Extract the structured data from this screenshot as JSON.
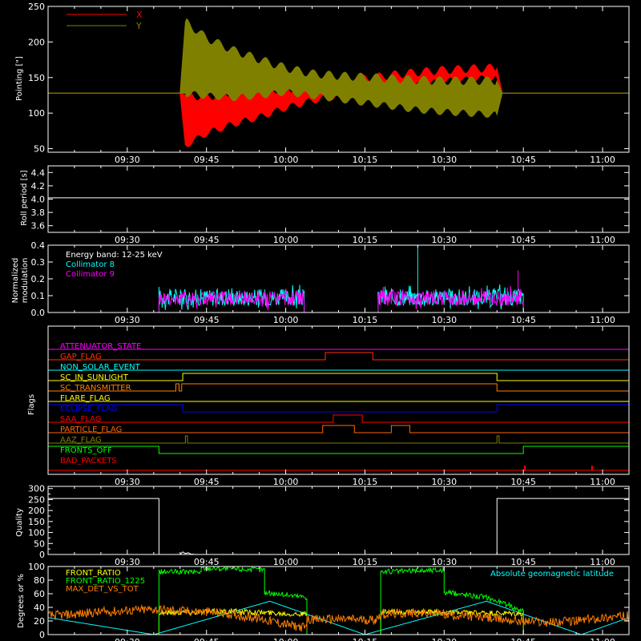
{
  "time_ticks": [
    "09:30",
    "09:45",
    "10:00",
    "10:15",
    "10:30",
    "10:45",
    "11:00"
  ],
  "time_tick_minutes": [
    570,
    585,
    600,
    615,
    630,
    645,
    660
  ],
  "time_range_minutes": [
    555,
    665
  ],
  "chart_data": [
    {
      "type": "area",
      "ylabel": "Pointing [\"]",
      "ylim": [
        45,
        250
      ],
      "yticks": [
        50,
        100,
        150,
        200,
        250
      ],
      "legend": [
        {
          "name": "X",
          "color": "#ff0000"
        },
        {
          "name": "Y",
          "color": "#808000"
        }
      ],
      "series": [
        {
          "name": "X",
          "color": "#ff0000",
          "x": [
            555,
            580,
            581,
            585,
            590,
            595,
            600,
            605,
            610,
            615,
            620,
            625,
            630,
            635,
            640,
            641,
            665
          ],
          "lower": [
            128,
            128,
            55,
            72,
            85,
            95,
            108,
            118,
            125,
            130,
            135,
            140,
            145,
            148,
            150,
            128,
            128
          ],
          "upper": [
            128,
            128,
            125,
            122,
            130,
            133,
            133,
            138,
            143,
            148,
            153,
            157,
            160,
            162,
            163,
            128,
            128
          ]
        },
        {
          "name": "Y",
          "color": "#808000",
          "x": [
            555,
            580,
            581,
            585,
            590,
            595,
            600,
            605,
            610,
            615,
            620,
            625,
            630,
            635,
            640,
            641,
            665
          ],
          "lower": [
            128,
            128,
            128,
            125,
            122,
            125,
            130,
            125,
            120,
            115,
            110,
            105,
            102,
            100,
            98,
            128,
            128
          ],
          "upper": [
            128,
            128,
            228,
            205,
            188,
            175,
            163,
            155,
            152,
            150,
            148,
            146,
            145,
            145,
            145,
            128,
            128
          ]
        }
      ],
      "baseline": {
        "value": 128,
        "color": "#808000"
      }
    },
    {
      "type": "line",
      "ylabel": "Roll period [s]",
      "ylim": [
        3.5,
        4.5
      ],
      "yticks": [
        3.6,
        3.8,
        4.0,
        4.2,
        4.4
      ],
      "series": [
        {
          "name": "",
          "color": "#ffffff",
          "x": [
            555,
            665
          ],
          "y": [
            4.02,
            4.02
          ]
        }
      ]
    },
    {
      "type": "line",
      "ylabel": "Normalized modulation",
      "ylim": [
        0,
        0.4
      ],
      "yticks": [
        0,
        0.1,
        0.2,
        0.3,
        0.4
      ],
      "annotations": [
        {
          "text": "Energy band: 12-25 keV",
          "color": "#ffffff"
        },
        {
          "text": "Collimator 8",
          "color": "#00ffff"
        },
        {
          "text": "Collimator 9",
          "color": "#ff00ff"
        }
      ],
      "series": [
        {
          "name": "Collimator 8",
          "color": "#00ffff",
          "segments": [
            [
              576,
              603.5
            ],
            [
              617.5,
              645
            ]
          ],
          "level": 0.09,
          "spread": 0.05,
          "spike": {
            "x": 625,
            "y": 0.4
          }
        },
        {
          "name": "Collimator 9",
          "color": "#ff00ff",
          "segments": [
            [
              576,
              603.5
            ],
            [
              617.5,
              645
            ]
          ],
          "level": 0.085,
          "spread": 0.045,
          "spike": {
            "x": 644,
            "y": 0.25
          }
        }
      ]
    },
    {
      "type": "line",
      "ylabel": "Flags",
      "flags": [
        {
          "name": "ATTENUATOR_STATE",
          "color": "#ff00ff",
          "highs": []
        },
        {
          "name": "GAP_FLAG",
          "color": "#ff3300",
          "highs": [
            [
              607.5,
              616.5
            ]
          ]
        },
        {
          "name": "NON_SOLAR_EVENT",
          "color": "#00ffff",
          "highs": []
        },
        {
          "name": "SC_IN_SUNLIGHT",
          "color": "#ffff00",
          "highs": [
            [
              580.5,
              640
            ]
          ]
        },
        {
          "name": "SC_TRANSMITTER",
          "color": "#ff8000",
          "highs": [
            [
              579.2,
              579.8
            ],
            [
              580.3,
              640
            ]
          ]
        },
        {
          "name": "FLARE_FLAG",
          "color": "#ffff00",
          "highs": []
        },
        {
          "name": "ECLIPSE_FLAG",
          "color": "#0000ff",
          "highs": [
            [
              555,
              580.5
            ],
            [
              640,
              665
            ]
          ]
        },
        {
          "name": "SAA_FLAG",
          "color": "#ff0000",
          "highs": [
            [
              609,
              614.5
            ]
          ]
        },
        {
          "name": "PARTICLE_FLAG",
          "color": "#ff6600",
          "highs": [
            [
              607,
              613
            ],
            [
              620,
              623.5
            ]
          ]
        },
        {
          "name": "AAZ_FLAG",
          "color": "#808000",
          "highs": [
            [
              581,
              581.4
            ],
            [
              640,
              640.4
            ]
          ]
        },
        {
          "name": "FRONTS_OFF",
          "color": "#00ff00",
          "highs": [
            [
              555,
              576
            ],
            [
              645,
              665
            ]
          ]
        },
        {
          "name": "BAD_PACKETS",
          "color": "#ff0000",
          "spikes": [
            645.3,
            658
          ]
        }
      ]
    },
    {
      "type": "line",
      "ylabel": "Quality",
      "ylim": [
        0,
        310
      ],
      "yticks": [
        0,
        50,
        100,
        150,
        200,
        250,
        300
      ],
      "yminor": [
        25,
        75,
        125,
        175,
        225,
        275
      ],
      "series": [
        {
          "name": "",
          "color": "#ffffff",
          "x": [
            555,
            576,
            576,
            580,
            580.5,
            581,
            581.5,
            582,
            583,
            640,
            640,
            665
          ],
          "y": [
            255,
            255,
            0,
            0,
            12,
            4,
            8,
            2,
            0,
            0,
            255,
            255
          ]
        }
      ]
    },
    {
      "type": "line",
      "ylabel": "Degrees or %",
      "ylim": [
        0,
        100
      ],
      "yticks": [
        0,
        20,
        40,
        60,
        80,
        100
      ],
      "legend": [
        {
          "name": "FRONT_RATIO",
          "color": "#ffff00"
        },
        {
          "name": "FRONT_RATIO_1225",
          "color": "#00ff00"
        },
        {
          "name": "MAX_DET_VS_TOT",
          "color": "#ff8000"
        }
      ],
      "annotation": {
        "text": "Absolute geomagnetic latitude",
        "color": "#00ffff"
      },
      "series": [
        {
          "name": "Absolute geomagnetic latitude",
          "color": "#00ffff",
          "x": [
            555,
            575,
            597,
            615,
            638,
            656,
            665
          ],
          "y": [
            25,
            0,
            49,
            0,
            49,
            0,
            25
          ]
        },
        {
          "name": "FRONT_RATIO",
          "color": "#ffff00",
          "x": [
            555,
            576,
            576,
            580,
            590,
            604,
            604,
            618,
            618,
            635,
            645,
            645,
            665
          ],
          "y": [
            0,
            0,
            32,
            33,
            34,
            30,
            0,
            0,
            33,
            32,
            30,
            0,
            0
          ]
        },
        {
          "name": "FRONT_RATIO_1225",
          "color": "#00ff00",
          "x": [
            555,
            576,
            576,
            584,
            584,
            596,
            596,
            604,
            604,
            618,
            618,
            630,
            630,
            638,
            638,
            645,
            645,
            665
          ],
          "y": [
            0,
            0,
            92,
            92,
            98,
            95,
            62,
            55,
            0,
            0,
            92,
            95,
            62,
            55,
            55,
            35,
            0,
            0
          ]
        },
        {
          "name": "MAX_DET_VS_TOT",
          "color": "#ff8000",
          "x": [
            555,
            560,
            565,
            570,
            575,
            580,
            585,
            590,
            596,
            600,
            604,
            604,
            610,
            617,
            618,
            625,
            630,
            635,
            640,
            645,
            650,
            655,
            660,
            665
          ],
          "y": [
            28,
            30,
            33,
            35,
            37,
            35,
            33,
            30,
            22,
            15,
            10,
            22,
            23,
            22,
            30,
            32,
            30,
            27,
            23,
            20,
            18,
            20,
            25,
            27
          ]
        }
      ]
    }
  ]
}
